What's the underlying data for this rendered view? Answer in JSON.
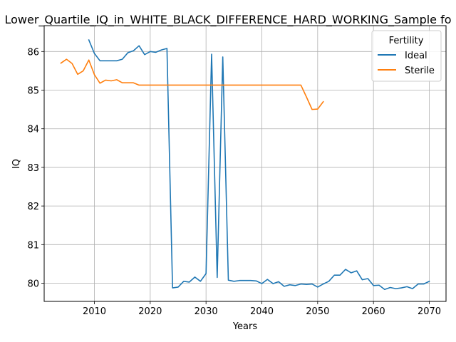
{
  "chart_data": {
    "type": "line",
    "title": "Lower_Quartile_IQ_in_WHITE_BLACK_DIFFERENCE_HARD_WORKING_Sample fo",
    "xlabel": "Years",
    "ylabel": "IQ",
    "xlim": [
      2001,
      2073
    ],
    "ylim": [
      79.53,
      86.67
    ],
    "xticks": [
      2010,
      2020,
      2030,
      2040,
      2050,
      2060,
      2070
    ],
    "yticks": [
      80,
      81,
      82,
      83,
      84,
      85,
      86
    ],
    "grid": true,
    "legend": {
      "title": "Fertility",
      "placement": "top-right"
    },
    "series": [
      {
        "name": "Ideal",
        "color": "#1f77b4",
        "x": [
          2009,
          2010,
          2011,
          2012,
          2013,
          2014,
          2015,
          2016,
          2017,
          2018,
          2019,
          2020,
          2021,
          2022,
          2023,
          2024,
          2025,
          2026,
          2027,
          2028,
          2029,
          2030,
          2031,
          2032,
          2033,
          2034,
          2035,
          2036,
          2037,
          2038,
          2039,
          2040,
          2041,
          2042,
          2043,
          2044,
          2045,
          2046,
          2047,
          2048,
          2049,
          2050,
          2051,
          2052,
          2053,
          2054,
          2055,
          2056,
          2057,
          2058,
          2059,
          2060,
          2061,
          2062,
          2063,
          2064,
          2065,
          2066,
          2067,
          2068,
          2069,
          2070
        ],
        "y": [
          86.3,
          85.95,
          85.76,
          85.76,
          85.76,
          85.76,
          85.8,
          85.97,
          86.02,
          86.15,
          85.92,
          86.0,
          85.98,
          86.04,
          86.08,
          79.88,
          79.9,
          80.05,
          80.03,
          80.16,
          80.05,
          80.25,
          85.93,
          80.15,
          85.86,
          80.08,
          80.05,
          80.07,
          80.07,
          80.07,
          80.06,
          79.99,
          80.1,
          79.99,
          80.04,
          79.92,
          79.96,
          79.94,
          79.98,
          79.97,
          79.98,
          79.9,
          79.98,
          80.05,
          80.21,
          80.21,
          80.36,
          80.27,
          80.32,
          80.09,
          80.12,
          79.94,
          79.95,
          79.84,
          79.89,
          79.86,
          79.88,
          79.91,
          79.86,
          79.98,
          79.98,
          80.05
        ]
      },
      {
        "name": "Sterile",
        "color": "#ff7f0e",
        "x": [
          2004,
          2005,
          2006,
          2007,
          2008,
          2009,
          2010,
          2011,
          2012,
          2013,
          2014,
          2015,
          2016,
          2017,
          2018,
          2019,
          2020,
          2021,
          2022,
          2023,
          2024,
          2025,
          2026,
          2027,
          2028,
          2029,
          2030,
          2031,
          2032,
          2033,
          2034,
          2035,
          2036,
          2037,
          2038,
          2039,
          2040,
          2041,
          2042,
          2043,
          2044,
          2045,
          2046,
          2047,
          2048,
          2049,
          2050,
          2051
        ],
        "y": [
          85.7,
          85.8,
          85.69,
          85.41,
          85.5,
          85.78,
          85.4,
          85.18,
          85.26,
          85.24,
          85.27,
          85.19,
          85.19,
          85.19,
          85.13,
          85.13,
          85.13,
          85.13,
          85.13,
          85.13,
          85.13,
          85.13,
          85.13,
          85.13,
          85.13,
          85.13,
          85.13,
          85.13,
          85.13,
          85.13,
          85.13,
          85.13,
          85.13,
          85.13,
          85.13,
          85.13,
          85.13,
          85.13,
          85.13,
          85.13,
          85.13,
          85.13,
          85.13,
          85.13,
          84.82,
          84.5,
          84.51,
          84.7
        ]
      }
    ]
  }
}
